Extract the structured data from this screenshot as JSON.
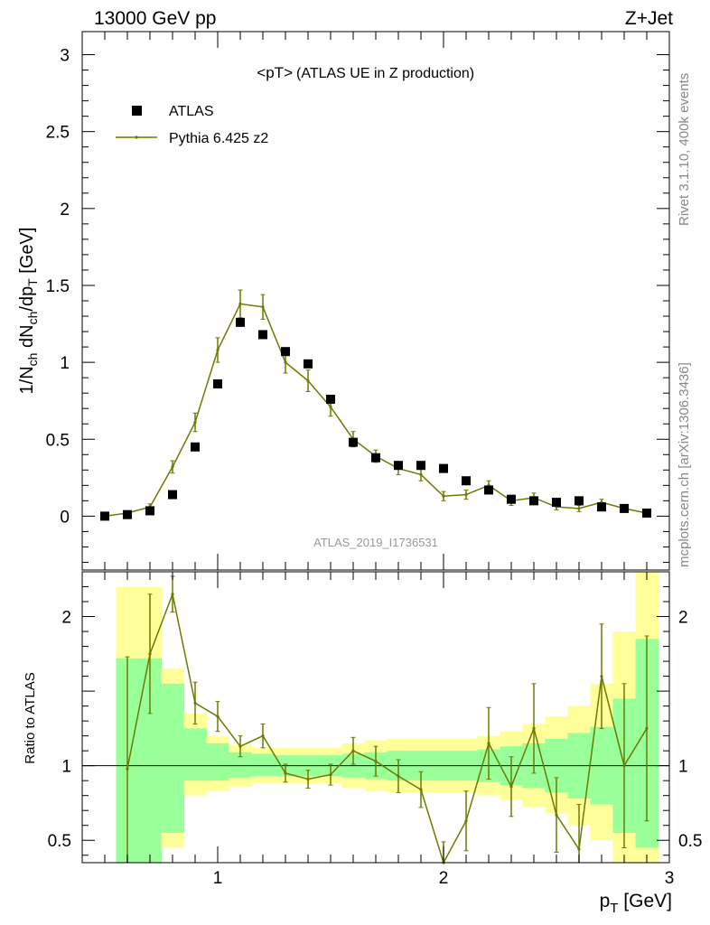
{
  "header": {
    "left": "13000 GeV pp",
    "right": "Z+Jet"
  },
  "side_labels": {
    "rivet": "Rivet 3.1.10,  400k events",
    "mcplots": "mcplots.cern.ch [arXiv:1306.3436]"
  },
  "chart_data": [
    {
      "type": "scatter",
      "title": "<pT>",
      "subtitle": "(ATLAS UE in Z production)",
      "watermark": "ATLAS_2019_I1736531",
      "ylabel": "1/N_ch dN_ch/dp_T [GeV]",
      "xlim": [
        0.4,
        3.0
      ],
      "ylim": [
        -0.35,
        3.15
      ],
      "yticks": [
        "0",
        "0.5",
        "1",
        "1.5",
        "2",
        "2.5",
        "3"
      ],
      "legend_position": "top-left",
      "series": [
        {
          "name": "ATLAS",
          "style": "black-square-markers",
          "color": "#000000",
          "x": [
            0.5,
            0.6,
            0.7,
            0.8,
            0.9,
            1.0,
            1.1,
            1.2,
            1.3,
            1.4,
            1.5,
            1.6,
            1.7,
            1.8,
            1.9,
            2.0,
            2.1,
            2.2,
            2.3,
            2.4,
            2.5,
            2.6,
            2.7,
            2.8,
            2.9
          ],
          "y": [
            0.0,
            0.01,
            0.035,
            0.14,
            0.45,
            0.86,
            1.26,
            1.18,
            1.07,
            0.99,
            0.76,
            0.48,
            0.38,
            0.33,
            0.33,
            0.31,
            0.23,
            0.17,
            0.11,
            0.1,
            0.09,
            0.1,
            0.06,
            0.05,
            0.02
          ]
        },
        {
          "name": "Pythia 6.425 z2",
          "style": "line-with-error-bars",
          "color": "#6b7a00",
          "x": [
            0.5,
            0.6,
            0.7,
            0.8,
            0.9,
            1.0,
            1.1,
            1.2,
            1.3,
            1.4,
            1.5,
            1.6,
            1.7,
            1.8,
            1.9,
            2.0,
            2.1,
            2.2,
            2.3,
            2.4,
            2.5,
            2.6,
            2.7,
            2.8,
            2.9
          ],
          "y": [
            0.0,
            0.02,
            0.06,
            0.32,
            0.61,
            1.08,
            1.38,
            1.36,
            1.0,
            0.88,
            0.71,
            0.5,
            0.39,
            0.31,
            0.27,
            0.13,
            0.14,
            0.2,
            0.1,
            0.12,
            0.06,
            0.05,
            0.09,
            0.05,
            0.02
          ],
          "yerr": [
            0.005,
            0.01,
            0.02,
            0.04,
            0.06,
            0.08,
            0.09,
            0.08,
            0.07,
            0.07,
            0.06,
            0.05,
            0.04,
            0.04,
            0.04,
            0.03,
            0.03,
            0.03,
            0.03,
            0.03,
            0.02,
            0.02,
            0.02,
            0.02,
            0.01
          ]
        }
      ]
    },
    {
      "type": "line",
      "ylabel": "Ratio to ATLAS",
      "xlabel": "p_T [GeV]",
      "xlim": [
        0.4,
        3.0
      ],
      "ylim": [
        0.35,
        2.3
      ],
      "xticks": [
        "1",
        "2",
        "3"
      ],
      "yticks": [
        "0.5",
        "1",
        "2"
      ],
      "reference_line": 1,
      "bands": {
        "inner_color": "#99ff99",
        "outer_color": "#ffff99",
        "x_edges": [
          0.55,
          0.65,
          0.75,
          0.85,
          0.95,
          1.05,
          1.15,
          1.25,
          1.35,
          1.45,
          1.55,
          1.65,
          1.75,
          1.85,
          1.95,
          2.05,
          2.15,
          2.25,
          2.35,
          2.45,
          2.55,
          2.65,
          2.75,
          2.85,
          2.95
        ],
        "inner": [
          [
            0.2,
            1.72
          ],
          [
            0.2,
            1.72
          ],
          [
            0.55,
            1.55
          ],
          [
            0.9,
            1.25
          ],
          [
            0.9,
            1.15
          ],
          [
            0.92,
            1.09
          ],
          [
            0.93,
            1.08
          ],
          [
            0.93,
            1.07
          ],
          [
            0.93,
            1.07
          ],
          [
            0.93,
            1.07
          ],
          [
            0.92,
            1.08
          ],
          [
            0.91,
            1.09
          ],
          [
            0.9,
            1.1
          ],
          [
            0.9,
            1.1
          ],
          [
            0.9,
            1.1
          ],
          [
            0.9,
            1.1
          ],
          [
            0.89,
            1.11
          ],
          [
            0.87,
            1.13
          ],
          [
            0.85,
            1.15
          ],
          [
            0.82,
            1.18
          ],
          [
            0.78,
            1.22
          ],
          [
            0.74,
            1.26
          ],
          [
            0.55,
            1.45
          ],
          [
            0.45,
            1.85
          ]
        ],
        "outer": [
          [
            0.1,
            2.2
          ],
          [
            0.1,
            2.2
          ],
          [
            0.45,
            1.65
          ],
          [
            0.8,
            1.35
          ],
          [
            0.83,
            1.2
          ],
          [
            0.86,
            1.14
          ],
          [
            0.88,
            1.12
          ],
          [
            0.88,
            1.12
          ],
          [
            0.88,
            1.12
          ],
          [
            0.88,
            1.12
          ],
          [
            0.85,
            1.15
          ],
          [
            0.83,
            1.17
          ],
          [
            0.82,
            1.18
          ],
          [
            0.82,
            1.18
          ],
          [
            0.82,
            1.18
          ],
          [
            0.82,
            1.18
          ],
          [
            0.8,
            1.2
          ],
          [
            0.77,
            1.23
          ],
          [
            0.72,
            1.28
          ],
          [
            0.68,
            1.33
          ],
          [
            0.6,
            1.4
          ],
          [
            0.5,
            1.55
          ],
          [
            0.35,
            1.9
          ],
          [
            0.3,
            2.3
          ]
        ]
      },
      "series": [
        {
          "name": "Pythia 6.425 z2",
          "color": "#6b7a00",
          "x": [
            0.6,
            0.7,
            0.8,
            0.9,
            1.0,
            1.1,
            1.2,
            1.3,
            1.4,
            1.5,
            1.6,
            1.7,
            1.8,
            1.9,
            2.0,
            2.1,
            2.2,
            2.3,
            2.4,
            2.5,
            2.6,
            2.7,
            2.8,
            2.9
          ],
          "y": [
            0.98,
            1.75,
            2.15,
            1.42,
            1.33,
            1.13,
            1.2,
            0.95,
            0.91,
            0.94,
            1.1,
            1.03,
            0.93,
            0.84,
            0.35,
            0.63,
            1.15,
            0.86,
            1.25,
            0.67,
            0.44,
            1.6,
            1.0,
            1.25
          ],
          "yerr": [
            0.75,
            0.4,
            0.12,
            0.14,
            0.1,
            0.07,
            0.08,
            0.06,
            0.06,
            0.07,
            0.09,
            0.1,
            0.11,
            0.12,
            0.14,
            0.2,
            0.24,
            0.2,
            0.3,
            0.25,
            0.3,
            0.35,
            0.55,
            0.62
          ]
        }
      ]
    }
  ]
}
